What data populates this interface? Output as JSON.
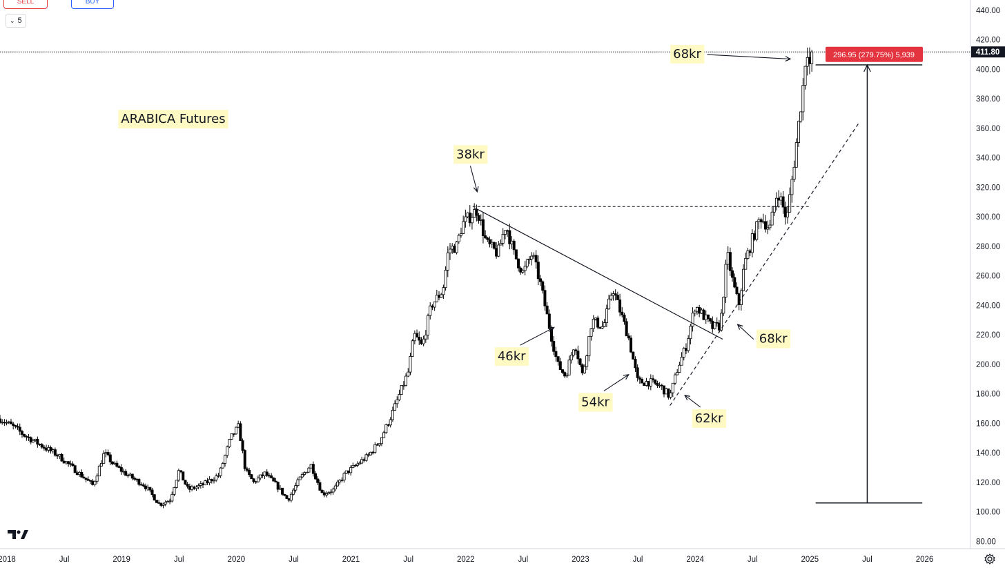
{
  "toolbar": {
    "sell_label": "SELL",
    "buy_label": "BUY",
    "interval_value": "5"
  },
  "chart_data": {
    "type": "candlestick",
    "title": "ARABICA Futures",
    "ylim": [
      75,
      447
    ],
    "y_ticks": [
      80,
      100,
      120,
      140,
      160,
      180,
      200,
      220,
      240,
      260,
      280,
      300,
      320,
      340,
      360,
      380,
      400,
      420,
      440
    ],
    "x_tick_labels": [
      "2018",
      "Jul",
      "2019",
      "Jul",
      "2020",
      "Jul",
      "2021",
      "Jul",
      "2022",
      "Jul",
      "2023",
      "Jul",
      "2024",
      "Jul",
      "2025",
      "Jul",
      "2026"
    ],
    "x_ticks": [
      2018.0,
      2018.5,
      2019.0,
      2019.5,
      2020.0,
      2020.5,
      2021.0,
      2021.5,
      2022.0,
      2022.5,
      2023.0,
      2023.5,
      2024.0,
      2024.5,
      2025.0,
      2025.5,
      2026.0
    ],
    "xlim": [
      2017.94,
      2026.4
    ],
    "last_price": "411.80",
    "last_price_value": 411.8,
    "price_path": [
      [
        2017.94,
        163
      ],
      [
        2018.05,
        158
      ],
      [
        2018.15,
        152
      ],
      [
        2018.3,
        145
      ],
      [
        2018.45,
        138
      ],
      [
        2018.6,
        128
      ],
      [
        2018.75,
        118
      ],
      [
        2018.85,
        140
      ],
      [
        2018.93,
        132
      ],
      [
        2019.05,
        125
      ],
      [
        2019.2,
        118
      ],
      [
        2019.33,
        105
      ],
      [
        2019.42,
        108
      ],
      [
        2019.5,
        128
      ],
      [
        2019.58,
        115
      ],
      [
        2019.7,
        118
      ],
      [
        2019.85,
        125
      ],
      [
        2019.95,
        150
      ],
      [
        2020.02,
        158
      ],
      [
        2020.08,
        128
      ],
      [
        2020.15,
        120
      ],
      [
        2020.25,
        126
      ],
      [
        2020.35,
        118
      ],
      [
        2020.45,
        108
      ],
      [
        2020.55,
        122
      ],
      [
        2020.65,
        132
      ],
      [
        2020.75,
        112
      ],
      [
        2020.85,
        115
      ],
      [
        2020.95,
        126
      ],
      [
        2021.05,
        132
      ],
      [
        2021.15,
        138
      ],
      [
        2021.25,
        148
      ],
      [
        2021.35,
        165
      ],
      [
        2021.45,
        185
      ],
      [
        2021.5,
        195
      ],
      [
        2021.55,
        220
      ],
      [
        2021.62,
        212
      ],
      [
        2021.7,
        240
      ],
      [
        2021.8,
        250
      ],
      [
        2021.85,
        278
      ],
      [
        2021.92,
        280
      ],
      [
        2021.97,
        295
      ],
      [
        2022.1,
        305
      ],
      [
        2022.18,
        282
      ],
      [
        2022.28,
        275
      ],
      [
        2022.35,
        295
      ],
      [
        2022.42,
        275
      ],
      [
        2022.5,
        262
      ],
      [
        2022.58,
        275
      ],
      [
        2022.65,
        255
      ],
      [
        2022.73,
        225
      ],
      [
        2022.8,
        200
      ],
      [
        2022.87,
        192
      ],
      [
        2022.95,
        215
      ],
      [
        2023.02,
        192
      ],
      [
        2023.1,
        230
      ],
      [
        2023.2,
        225
      ],
      [
        2023.28,
        252
      ],
      [
        2023.35,
        235
      ],
      [
        2023.42,
        218
      ],
      [
        2023.5,
        188
      ],
      [
        2023.6,
        188
      ],
      [
        2023.7,
        185
      ],
      [
        2023.78,
        178
      ],
      [
        2023.85,
        198
      ],
      [
        2023.92,
        212
      ],
      [
        2024.0,
        240
      ],
      [
        2024.08,
        232
      ],
      [
        2024.15,
        225
      ],
      [
        2024.22,
        226
      ],
      [
        2024.28,
        275
      ],
      [
        2024.33,
        255
      ],
      [
        2024.38,
        240
      ],
      [
        2024.43,
        268
      ],
      [
        2024.5,
        285
      ],
      [
        2024.57,
        300
      ],
      [
        2024.65,
        292
      ],
      [
        2024.72,
        318
      ],
      [
        2024.8,
        298
      ],
      [
        2024.86,
        335
      ],
      [
        2024.9,
        362
      ],
      [
        2024.95,
        395
      ],
      [
        2024.97,
        418
      ],
      [
        2025.0,
        402
      ],
      [
        2025.03,
        411.8
      ]
    ],
    "levels": [
      {
        "label": "resistance",
        "y": 307,
        "x0": 2022.06,
        "x1": 2025.0
      }
    ],
    "trendlines": [
      {
        "label": "descending",
        "x0": 2022.08,
        "y0": 306,
        "x1": 2024.24,
        "y1": 217
      },
      {
        "label": "ascending",
        "x0": 2023.78,
        "y0": 172,
        "x1": 2025.43,
        "y1": 364
      }
    ],
    "measure": {
      "label": "296.95 (279.75%) 5,939",
      "top": 403,
      "bottom": 106,
      "x": 2025.5,
      "x_from": 2025.05,
      "x_to": 2025.98
    },
    "annotations": [
      {
        "text": "ARABICA Futures",
        "x": 2019.45,
        "y": 366,
        "arrow_to": null
      },
      {
        "text": "38kr",
        "x": 2022.04,
        "y": 342,
        "arrow_to": [
          2022.1,
          317
        ]
      },
      {
        "text": "46kr",
        "x": 2022.4,
        "y": 205,
        "arrow_to": [
          2022.77,
          225
        ]
      },
      {
        "text": "54kr",
        "x": 2023.13,
        "y": 174,
        "arrow_to": [
          2023.42,
          193
        ]
      },
      {
        "text": "62kr",
        "x": 2024.12,
        "y": 163,
        "arrow_to": [
          2023.91,
          179
        ]
      },
      {
        "text": "68kr",
        "x": 2024.68,
        "y": 217,
        "arrow_to": [
          2024.37,
          227
        ]
      },
      {
        "text": "68kr",
        "x": 2023.93,
        "y": 410,
        "arrow_to": [
          2024.83,
          407
        ]
      }
    ]
  }
}
